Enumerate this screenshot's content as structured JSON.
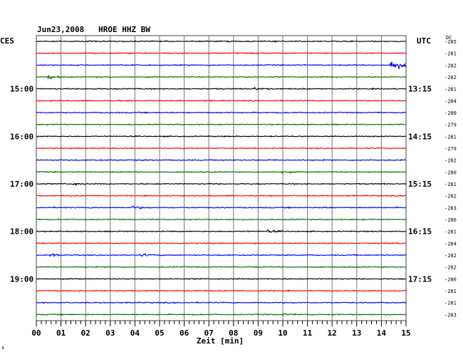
{
  "header": {
    "title": "Jun23,2008   HROE HHZ BW",
    "left_tz": "CES",
    "right_tz": "UTC",
    "dc_label": "DC"
  },
  "chart_data": {
    "type": "line",
    "title": "Jun23,2008   HROE HHZ BW",
    "xlabel": "Zeit [min]",
    "xlim": [
      0,
      15
    ],
    "x_ticks": [
      "00",
      "01",
      "02",
      "03",
      "04",
      "05",
      "06",
      "07",
      "08",
      "09",
      "10",
      "11",
      "12",
      "13",
      "14",
      "15"
    ],
    "trace_colors": [
      "#000000",
      "#ff0000",
      "#0000ff",
      "#007000"
    ],
    "left_hour_labels": [
      {
        "row": 4,
        "label": "15:00"
      },
      {
        "row": 8,
        "label": "16:00"
      },
      {
        "row": 12,
        "label": "17:00"
      },
      {
        "row": 16,
        "label": "18:00"
      },
      {
        "row": 20,
        "label": "19:00"
      }
    ],
    "right_time_labels": [
      {
        "row": 4,
        "label": "13:15"
      },
      {
        "row": 8,
        "label": "14:15"
      },
      {
        "row": 12,
        "label": "15:15"
      },
      {
        "row": 16,
        "label": "16:15"
      },
      {
        "row": 20,
        "label": "17:15"
      }
    ],
    "dc_values": [
      "-285",
      "-281",
      "-282",
      "-282",
      "-281",
      "-284",
      "-280",
      "-279",
      "-281",
      "-279",
      "-282",
      "-280",
      "-281",
      "-282",
      "-283",
      "-280",
      "-281",
      "-284",
      "-282",
      "-282",
      "-286",
      "-281",
      "-281",
      "-283"
    ],
    "events": [
      {
        "row": 2,
        "minute": 14.4,
        "amplitude": 14
      },
      {
        "row": 3,
        "minute": 0.5,
        "amplitude": 4
      },
      {
        "row": 4,
        "minute": 8.8,
        "amplitude": 3
      },
      {
        "row": 11,
        "minute": 10.0,
        "amplitude": 2
      },
      {
        "row": 12,
        "minute": 1.5,
        "amplitude": 3
      },
      {
        "row": 14,
        "minute": 3.9,
        "amplitude": 3
      },
      {
        "row": 14,
        "minute": 11.6,
        "amplitude": 2
      },
      {
        "row": 16,
        "minute": 9.4,
        "amplitude": 3
      },
      {
        "row": 18,
        "minute": 0.6,
        "amplitude": 3
      },
      {
        "row": 18,
        "minute": 4.3,
        "amplitude": 3
      },
      {
        "row": 23,
        "minute": 10.0,
        "amplitude": 2
      }
    ]
  },
  "footnote": "s"
}
